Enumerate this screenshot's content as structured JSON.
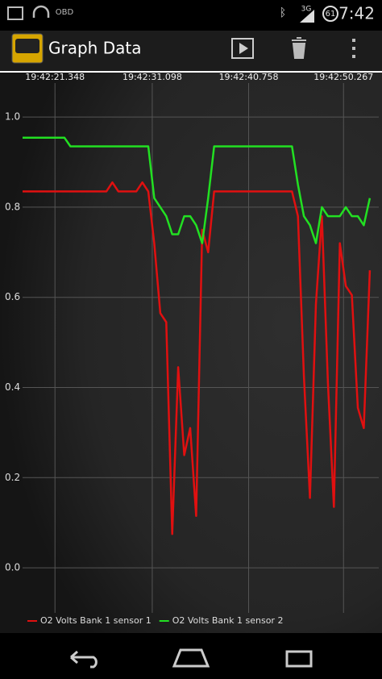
{
  "status_bar": {
    "app_label": "OBD",
    "network": "3G",
    "battery": "61",
    "time": "7:42"
  },
  "app_bar": {
    "title": "Graph Data"
  },
  "chart_data": {
    "type": "line",
    "x": [
      18.1,
      18.7,
      19.3,
      19.9,
      20.5,
      21.1,
      21.7,
      22.3,
      22.9,
      23.5,
      24.1,
      24.7,
      25.3,
      25.9,
      26.5,
      27.1,
      27.7,
      28.3,
      28.9,
      29.5,
      30.1,
      30.7,
      31.3,
      31.9,
      32.5,
      33.1,
      33.7,
      34.3,
      34.9,
      35.5,
      36.1,
      36.7,
      37.3,
      37.9,
      38.5,
      39.1,
      39.7,
      40.3,
      40.9,
      41.5,
      42.1,
      42.7,
      43.3,
      43.9,
      44.5,
      45.1,
      45.7,
      46.3,
      46.9,
      47.5,
      48.1,
      48.7,
      49.3,
      49.9,
      50.5,
      51.1,
      51.7,
      52.3,
      52.9
    ],
    "series": [
      {
        "name": "O2 Volts Bank 1 sensor 1",
        "color": "#e01010",
        "values": [
          0.835,
          0.835,
          0.835,
          0.835,
          0.835,
          0.835,
          0.835,
          0.835,
          0.835,
          0.835,
          0.835,
          0.835,
          0.835,
          0.835,
          0.835,
          0.855,
          0.835,
          0.835,
          0.835,
          0.835,
          0.855,
          0.835,
          0.72,
          0.565,
          0.545,
          0.075,
          0.445,
          0.25,
          0.31,
          0.115,
          0.75,
          0.7,
          0.835,
          0.835,
          0.835,
          0.835,
          0.835,
          0.835,
          0.835,
          0.835,
          0.835,
          0.835,
          0.835,
          0.835,
          0.835,
          0.835,
          0.78,
          0.425,
          0.155,
          0.585,
          0.78,
          0.41,
          0.135,
          0.72,
          0.625,
          0.605,
          0.355,
          0.31,
          0.66
        ]
      },
      {
        "name": "O2 Volts Bank 1 sensor 2",
        "color": "#22e022",
        "values": [
          0.954,
          0.954,
          0.954,
          0.954,
          0.954,
          0.954,
          0.954,
          0.954,
          0.935,
          0.935,
          0.935,
          0.935,
          0.935,
          0.935,
          0.935,
          0.935,
          0.935,
          0.935,
          0.935,
          0.935,
          0.935,
          0.935,
          0.82,
          0.8,
          0.78,
          0.74,
          0.74,
          0.78,
          0.78,
          0.76,
          0.72,
          0.82,
          0.935,
          0.935,
          0.935,
          0.935,
          0.935,
          0.935,
          0.935,
          0.935,
          0.935,
          0.935,
          0.935,
          0.935,
          0.935,
          0.935,
          0.85,
          0.78,
          0.76,
          0.72,
          0.8,
          0.78,
          0.78,
          0.78,
          0.8,
          0.78,
          0.78,
          0.76,
          0.82
        ]
      }
    ],
    "xlim": [
      18.1,
      53.8
    ],
    "xticks": [
      {
        "value": 21.348,
        "label": "19:42:21.348"
      },
      {
        "value": 31.098,
        "label": "19:42:31.098"
      },
      {
        "value": 40.758,
        "label": "19:42:40.758"
      },
      {
        "value": 50.267,
        "label": "19:42:50.267"
      }
    ],
    "ylim": [
      -0.1,
      1.07
    ],
    "yticks": [
      {
        "value": 0,
        "label": "0.0"
      },
      0.2,
      0.4,
      0.6,
      0.8,
      {
        "value": 1,
        "label": "1.0"
      }
    ],
    "grid": true
  }
}
